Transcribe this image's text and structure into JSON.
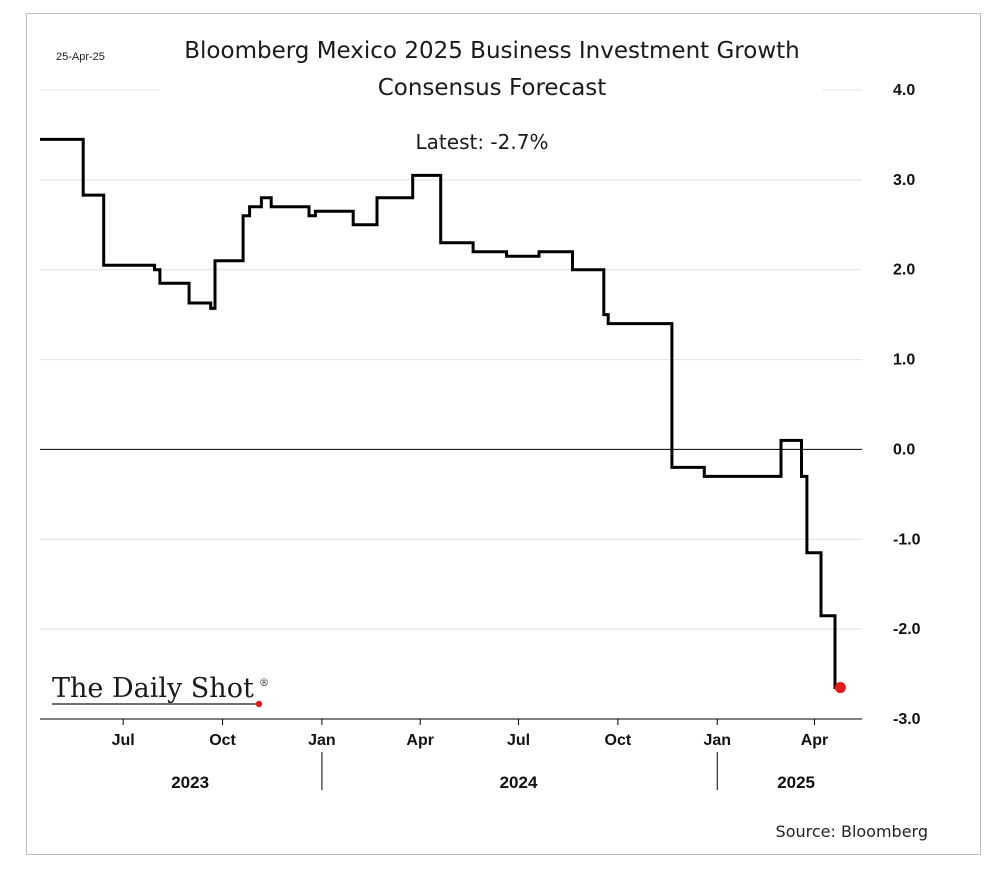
{
  "header": {
    "date_stamp": "25-Apr-25",
    "title_line1": "Bloomberg Mexico 2025 Business Investment Growth",
    "title_line2": "Consensus Forecast",
    "latest_label": "Latest:  -2.7%"
  },
  "footer": {
    "source": "Source: Bloomberg",
    "logo_text": "The Daily Shot",
    "logo_mark": "®"
  },
  "colors": {
    "line": "#000000",
    "grid": "#e6e6e6",
    "zero_line": "#000000",
    "latest_marker": "#e8191a"
  },
  "chart_data": {
    "type": "line",
    "title": "Bloomberg Mexico 2025 Business Investment Growth Consensus Forecast",
    "subtitle": "Latest:  -2.7%",
    "xlabel": "",
    "ylabel": "",
    "y_axis_position": "right",
    "ylim": [
      -3.0,
      4.0
    ],
    "y_ticks": [
      4.0,
      3.0,
      2.0,
      1.0,
      0.0,
      -1.0,
      -2.0,
      -3.0
    ],
    "y_tick_labels": [
      "4.0",
      "3.0",
      "2.0",
      "1.0",
      "0.0",
      "-1.0",
      "-2.0",
      "-3.0"
    ],
    "xlim": [
      "2023-04-15",
      "2025-05-15"
    ],
    "x_ticks": [
      "2023-07-01",
      "2023-10-01",
      "2024-01-01",
      "2024-04-01",
      "2024-07-01",
      "2024-10-01",
      "2025-01-01",
      "2025-04-01"
    ],
    "x_tick_labels": [
      "Jul",
      "Oct",
      "Jan",
      "Apr",
      "Jul",
      "Oct",
      "Jan",
      "Apr"
    ],
    "year_labels": [
      {
        "label": "2023",
        "center": "2023-09-01"
      },
      {
        "label": "2024",
        "center": "2024-07-01"
      },
      {
        "label": "2025",
        "center": "2025-03-15"
      }
    ],
    "year_separators": [
      "2024-01-01",
      "2025-01-01"
    ],
    "grid": true,
    "zero_line": true,
    "series": [
      {
        "step": true,
        "points": [
          [
            "2023-04-15",
            3.45
          ],
          [
            "2023-05-25",
            2.83
          ],
          [
            "2023-06-04",
            2.83
          ],
          [
            "2023-06-13",
            2.05
          ],
          [
            "2023-07-25",
            2.05
          ],
          [
            "2023-07-30",
            2.0
          ],
          [
            "2023-08-04",
            1.85
          ],
          [
            "2023-08-31",
            1.63
          ],
          [
            "2023-09-20",
            1.57
          ],
          [
            "2023-09-24",
            2.1
          ],
          [
            "2023-10-20",
            2.6
          ],
          [
            "2023-10-26",
            2.7
          ],
          [
            "2023-11-06",
            2.8
          ],
          [
            "2023-11-15",
            2.7
          ],
          [
            "2023-12-20",
            2.6
          ],
          [
            "2023-12-26",
            2.65
          ],
          [
            "2024-01-30",
            2.5
          ],
          [
            "2024-02-21",
            2.8
          ],
          [
            "2024-03-25",
            3.05
          ],
          [
            "2024-04-20",
            2.3
          ],
          [
            "2024-05-20",
            2.2
          ],
          [
            "2024-06-20",
            2.15
          ],
          [
            "2024-07-20",
            2.2
          ],
          [
            "2024-08-20",
            2.0
          ],
          [
            "2024-09-18",
            1.5
          ],
          [
            "2024-09-22",
            1.4
          ],
          [
            "2024-11-20",
            -0.2
          ],
          [
            "2024-12-20",
            -0.3
          ],
          [
            "2025-03-01",
            0.1
          ],
          [
            "2025-03-20",
            -0.3
          ],
          [
            "2025-03-25",
            -1.15
          ],
          [
            "2025-04-07",
            -1.85
          ],
          [
            "2025-04-20",
            -2.65
          ]
        ],
        "end_date": "2025-04-25"
      }
    ],
    "latest": {
      "date": "2025-04-25",
      "value": -2.65,
      "label": "-2.7%"
    }
  }
}
